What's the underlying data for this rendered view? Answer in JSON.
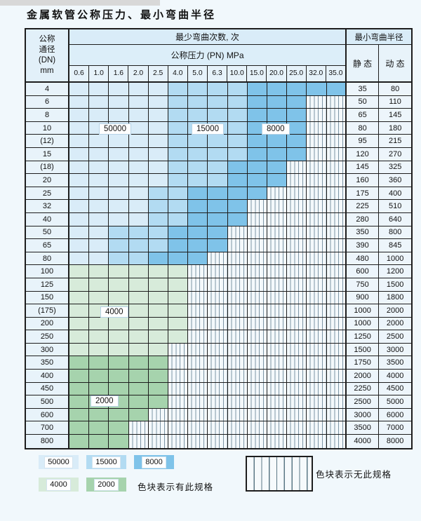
{
  "title": "金属软管公称压力、最小弯曲半径",
  "table": {
    "corner": {
      "l1": "公称",
      "l2": "通径",
      "l3": "(DN)",
      "l4": "mm"
    },
    "group_headers": {
      "bend_cycles": "最少弯曲次数, 次",
      "pressure": "公称压力 (PN) MPa",
      "min_bend_radius": "最小弯曲半径",
      "static": "静 态",
      "dynamic": "动 态"
    },
    "pressure_columns": [
      "0.6",
      "1.0",
      "1.6",
      "2.0",
      "2.5",
      "4.0",
      "5.0",
      "6.3",
      "10.0",
      "15.0",
      "20.0",
      "25.0",
      "32.0",
      "35.0"
    ],
    "overlay_labels": [
      "50000",
      "15000",
      "8000",
      "4000",
      "2000"
    ],
    "colors": {
      "cycles_50000": "#d9ecf8",
      "cycles_15000": "#b2dbf2",
      "cycles_8000": "#7fc3e9",
      "cycles_4000": "#d7ebda",
      "cycles_2000": "#a6d3ad",
      "no_spec_hatch_line": "#7d95a5"
    },
    "rows": [
      {
        "dn": "4",
        "s": "35",
        "d": "80",
        "end": 13,
        "b8": 9,
        "b15": 5,
        "rg": "blue"
      },
      {
        "dn": "6",
        "s": "50",
        "d": "110",
        "end": 11,
        "b8": 9,
        "b15": 5,
        "rg": "blue"
      },
      {
        "dn": "8",
        "s": "65",
        "d": "145",
        "end": 11,
        "b8": 9,
        "b15": 5,
        "rg": "blue"
      },
      {
        "dn": "10",
        "s": "80",
        "d": "180",
        "end": 11,
        "b8": 9,
        "b15": 5,
        "rg": "blue"
      },
      {
        "dn": "(12)",
        "s": "95",
        "d": "215",
        "end": 11,
        "b8": 9,
        "b15": 5,
        "rg": "blue"
      },
      {
        "dn": "15",
        "s": "120",
        "d": "270",
        "end": 11,
        "b8": 9,
        "b15": 5,
        "rg": "blue"
      },
      {
        "dn": "(18)",
        "s": "145",
        "d": "325",
        "end": 10,
        "b8": 8,
        "b15": 5,
        "rg": "blue"
      },
      {
        "dn": "20",
        "s": "160",
        "d": "360",
        "end": 10,
        "b8": 8,
        "b15": 5,
        "rg": "blue"
      },
      {
        "dn": "25",
        "s": "175",
        "d": "400",
        "end": 9,
        "b8": 6,
        "b15": 4,
        "rg": "blue"
      },
      {
        "dn": "32",
        "s": "225",
        "d": "510",
        "end": 8,
        "b8": 6,
        "b15": 4,
        "rg": "blue"
      },
      {
        "dn": "40",
        "s": "280",
        "d": "640",
        "end": 8,
        "b8": 6,
        "b15": 4,
        "rg": "blue"
      },
      {
        "dn": "50",
        "s": "350",
        "d": "800",
        "end": 7,
        "b8": 5,
        "b15": 2,
        "rg": "blue"
      },
      {
        "dn": "65",
        "s": "390",
        "d": "845",
        "end": 7,
        "b8": 5,
        "b15": 2,
        "rg": "blue"
      },
      {
        "dn": "80",
        "s": "480",
        "d": "1000",
        "end": 6,
        "b8": 4,
        "b15": 2,
        "rg": "blue"
      },
      {
        "dn": "100",
        "s": "600",
        "d": "1200",
        "end": 5,
        "rg": "g4"
      },
      {
        "dn": "125",
        "s": "750",
        "d": "1500",
        "end": 5,
        "rg": "g4"
      },
      {
        "dn": "150",
        "s": "900",
        "d": "1800",
        "end": 5,
        "rg": "g4"
      },
      {
        "dn": "(175)",
        "s": "1000",
        "d": "2000",
        "end": 5,
        "rg": "g4"
      },
      {
        "dn": "200",
        "s": "1000",
        "d": "2000",
        "end": 5,
        "rg": "g4"
      },
      {
        "dn": "250",
        "s": "1250",
        "d": "2500",
        "end": 5,
        "rg": "g4"
      },
      {
        "dn": "300",
        "s": "1500",
        "d": "3000",
        "end": 4,
        "rg": "g4"
      },
      {
        "dn": "350",
        "s": "1750",
        "d": "3500",
        "end": 4,
        "rg": "g2"
      },
      {
        "dn": "400",
        "s": "2000",
        "d": "4000",
        "end": 4,
        "rg": "g2"
      },
      {
        "dn": "450",
        "s": "2250",
        "d": "4500",
        "end": 4,
        "rg": "g2"
      },
      {
        "dn": "500",
        "s": "2500",
        "d": "5000",
        "end": 4,
        "rg": "g2"
      },
      {
        "dn": "600",
        "s": "3000",
        "d": "6000",
        "end": 3,
        "rg": "g2"
      },
      {
        "dn": "700",
        "s": "3500",
        "d": "7000",
        "end": 2,
        "rg": "g2"
      },
      {
        "dn": "800",
        "s": "4000",
        "d": "8000",
        "end": 2,
        "rg": "g2"
      }
    ]
  },
  "legend": {
    "items": [
      {
        "label": "50000",
        "key": "b50"
      },
      {
        "label": "15000",
        "key": "b15"
      },
      {
        "label": "8000",
        "key": "b8"
      },
      {
        "label": "4000",
        "key": "g4"
      },
      {
        "label": "2000",
        "key": "g2"
      }
    ],
    "available_text": "色块表示有此规格",
    "unavailable_text": "色块表示无此规格"
  }
}
